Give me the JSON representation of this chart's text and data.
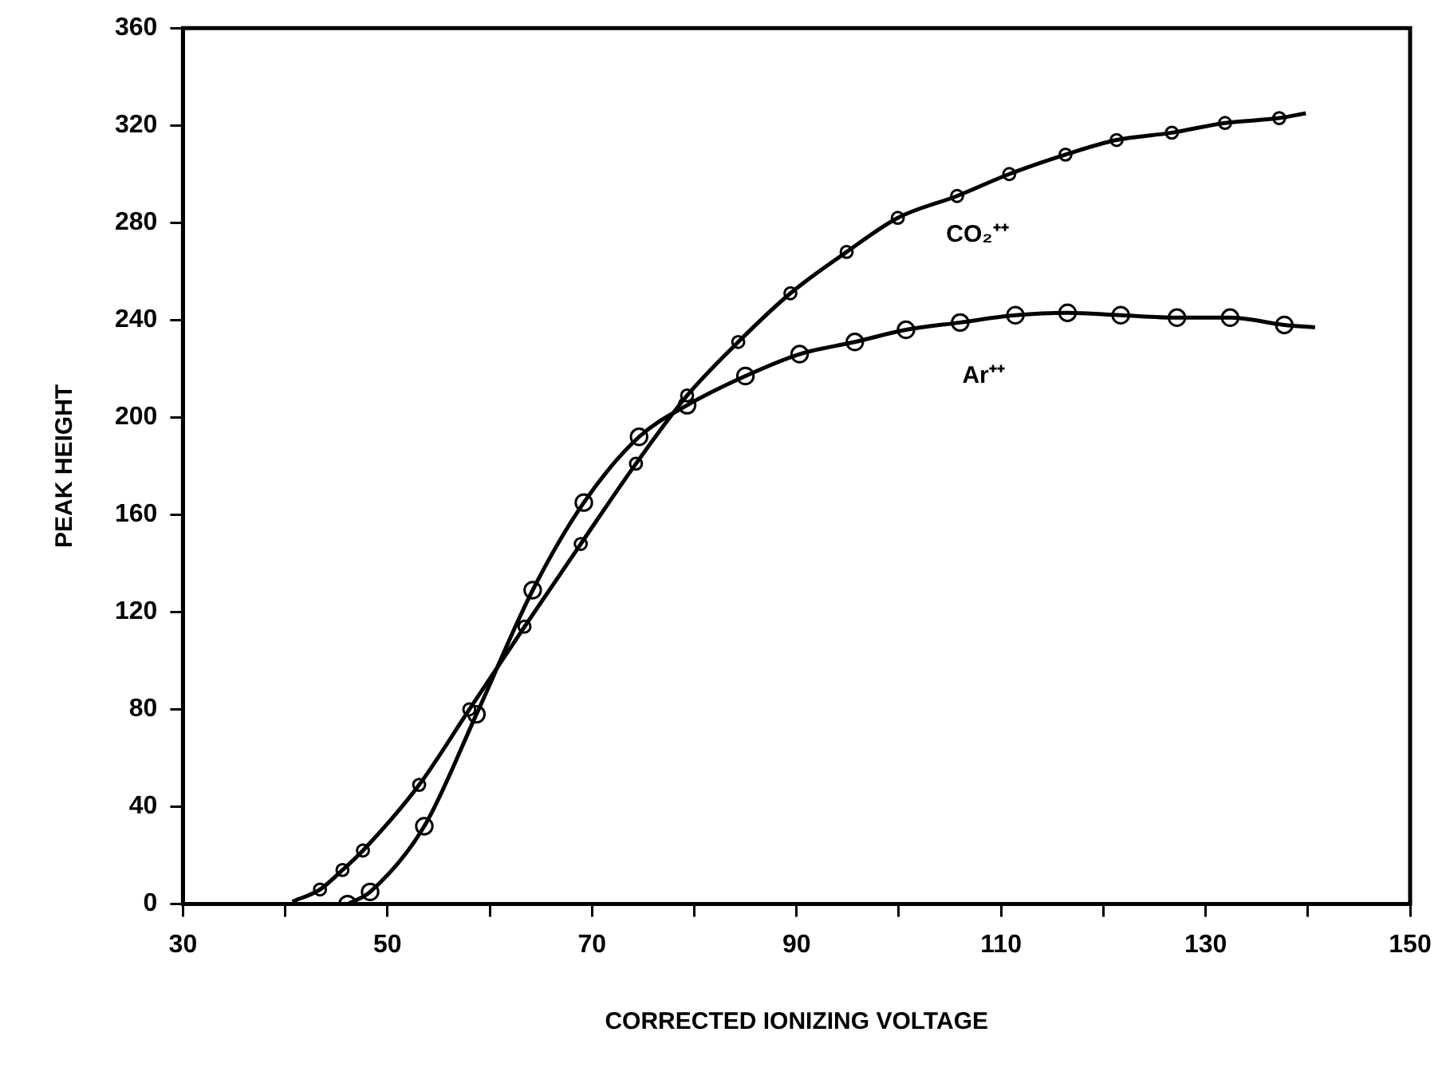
{
  "chart_data": {
    "type": "scatter",
    "xlabel": "CORRECTED IONIZING VOLTAGE",
    "ylabel": "PEAK HEIGHT",
    "xlim": [
      30,
      150
    ],
    "ylim": [
      0,
      360
    ],
    "xticks": [
      30,
      {
        "value": 40,
        "label": null
      },
      50,
      {
        "value": 60,
        "label": null
      },
      70,
      {
        "value": 80,
        "label": null
      },
      90,
      {
        "value": 100,
        "label": null
      },
      110,
      {
        "value": 120,
        "label": null
      },
      130,
      {
        "value": 140,
        "label": null
      },
      150
    ],
    "yticks": [
      0,
      40,
      80,
      120,
      160,
      200,
      240,
      280,
      320,
      360
    ],
    "grid": false,
    "legend": false,
    "series": [
      {
        "type": "line",
        "marker": "none",
        "color": "#000000",
        "x": [
          40.7,
          43.4,
          45.6,
          47.6,
          53.1,
          58,
          63.4,
          68.9,
          74.3,
          79.3,
          84.3,
          89.4,
          94.9,
          99.9,
          105.7,
          110.8,
          116.3,
          121.3,
          126.7,
          131.9,
          137.2,
          139.8
        ],
        "values": [
          1,
          6,
          14,
          22,
          49,
          80,
          114,
          148,
          181,
          209,
          231,
          251,
          268,
          282,
          291,
          300,
          308,
          314,
          317,
          321,
          323,
          325
        ]
      },
      {
        "type": "scatter",
        "name": "CO₂⁺⁺",
        "marker": "circle",
        "color": "#000000",
        "x": [
          43.4,
          45.6,
          47.6,
          53.1,
          58,
          63.4,
          68.9,
          74.3,
          79.3,
          84.3,
          89.4,
          94.9,
          99.9,
          105.7,
          110.8,
          116.3,
          121.3,
          126.7,
          131.9,
          137.2
        ],
        "values": [
          6,
          14,
          22,
          49,
          80,
          114,
          148,
          181,
          209,
          231,
          251,
          268,
          282,
          291,
          300,
          308,
          314,
          317,
          321,
          323
        ]
      },
      {
        "type": "line",
        "marker": "none",
        "color": "#000000",
        "x": [
          46.1,
          48.3,
          53.6,
          58.7,
          64.2,
          69.2,
          74.6,
          79.3,
          85,
          90.3,
          95.7,
          100.7,
          106,
          111.4,
          116.5,
          121.7,
          127.2,
          132.4,
          137.7,
          140.7
        ],
        "values": [
          0,
          5,
          32,
          78,
          129,
          165,
          192,
          205,
          217,
          226,
          231,
          236,
          239,
          242,
          243,
          242,
          241,
          241,
          238,
          237
        ]
      },
      {
        "type": "scatter",
        "name": "Ar⁺⁺",
        "marker": "circle",
        "color": "#000000",
        "x": [
          46.1,
          48.3,
          53.6,
          58.7,
          64.2,
          69.2,
          74.6,
          79.3,
          85,
          90.3,
          95.7,
          100.7,
          106,
          111.4,
          116.5,
          121.7,
          127.2,
          132.4,
          137.7
        ],
        "values": [
          0,
          5,
          32,
          78,
          129,
          165,
          192,
          205,
          217,
          226,
          231,
          236,
          239,
          242,
          243,
          242,
          241,
          241,
          238
        ]
      }
    ]
  }
}
